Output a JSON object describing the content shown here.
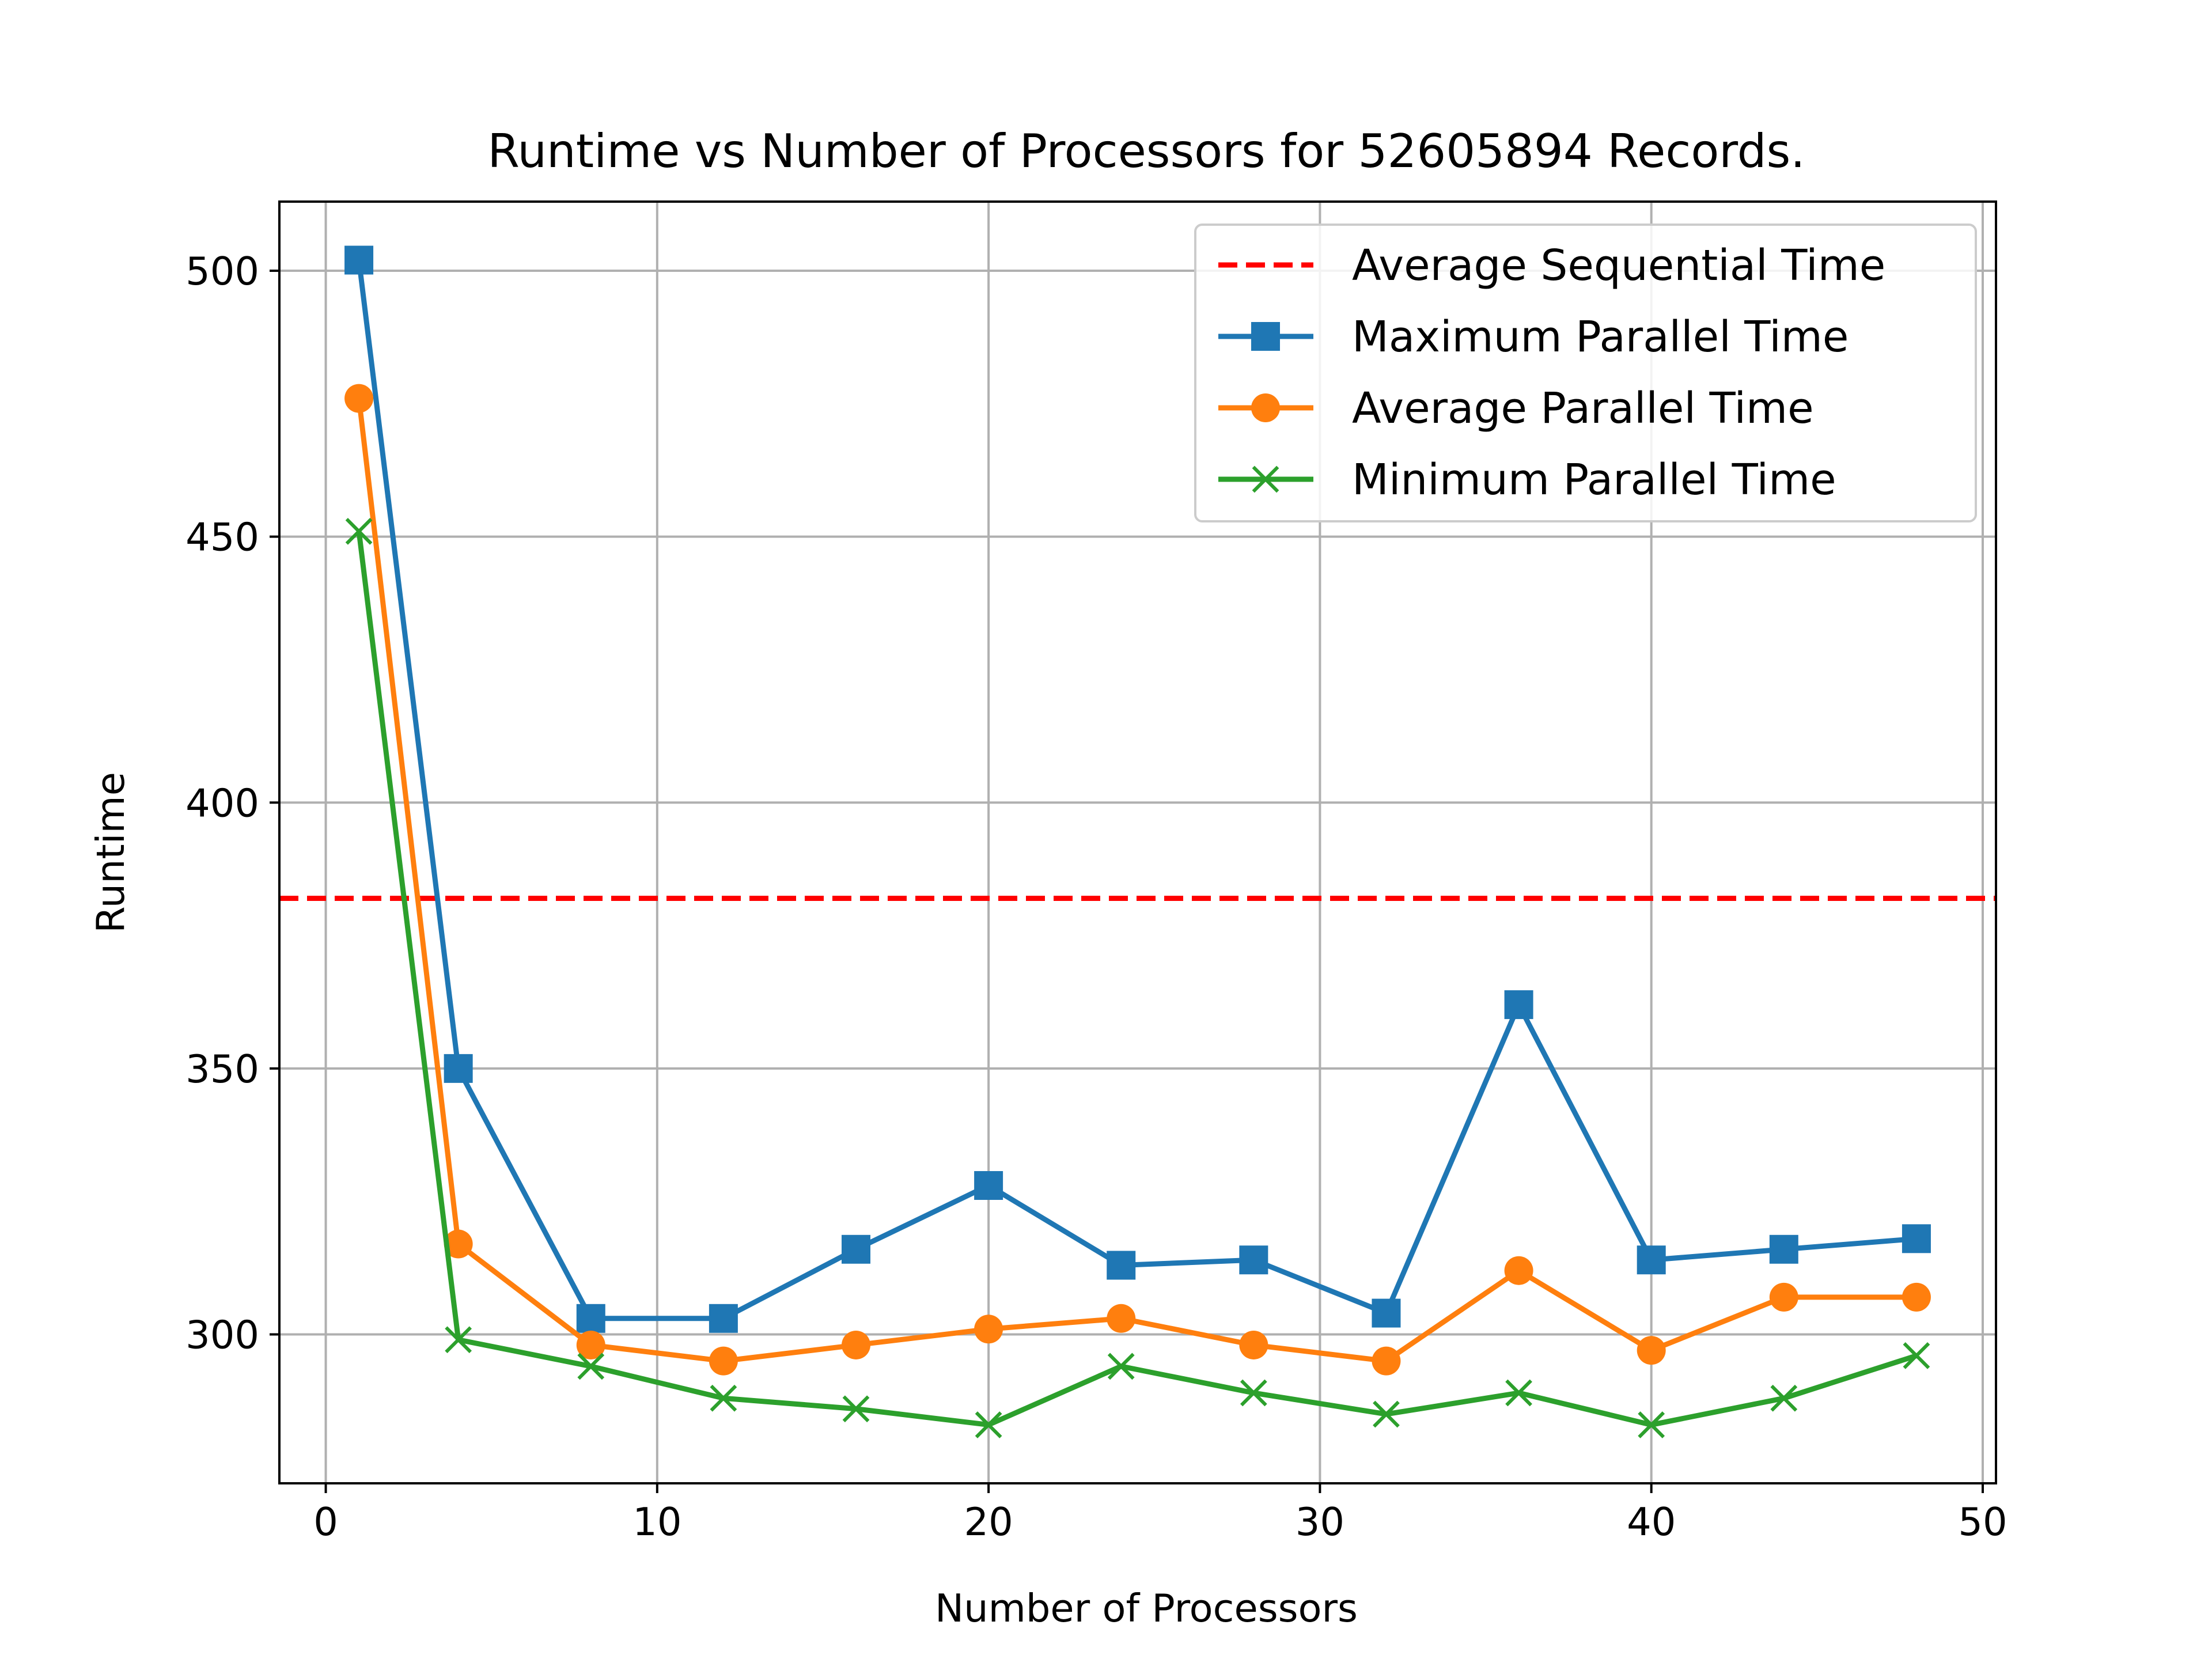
{
  "chart_data": {
    "type": "line",
    "title": "Runtime vs Number of Processors for 52605894 Records.",
    "xlabel": "Number of Processors",
    "ylabel": "Runtime",
    "xlim": [
      -1.4,
      50.4
    ],
    "ylim": [
      272.0,
      513.0
    ],
    "xticks": [
      0,
      10,
      20,
      30,
      40,
      50
    ],
    "yticks": [
      300,
      350,
      400,
      450,
      500
    ],
    "grid": true,
    "legend_position": "top-right",
    "x": [
      1,
      4,
      8,
      12,
      16,
      20,
      24,
      28,
      32,
      36,
      40,
      44,
      48
    ],
    "reference_lines": [
      {
        "name": "Average Sequential Time",
        "y": 382,
        "color": "#ff0000",
        "style": "dashed"
      }
    ],
    "series": [
      {
        "name": "Maximum Parallel Time",
        "color": "#1f77b4",
        "marker": "square",
        "values": [
          502,
          350,
          303,
          303,
          316,
          328,
          313,
          314,
          304,
          362,
          314,
          316,
          318
        ]
      },
      {
        "name": "Average Parallel Time",
        "color": "#ff7f0e",
        "marker": "circle",
        "values": [
          476,
          317,
          298,
          295,
          298,
          301,
          303,
          298,
          295,
          312,
          297,
          307,
          307
        ]
      },
      {
        "name": "Minimum Parallel Time",
        "color": "#2ca02c",
        "marker": "x",
        "values": [
          451,
          299,
          294,
          288,
          286,
          283,
          294,
          289,
          285,
          289,
          283,
          288,
          296
        ]
      }
    ]
  }
}
